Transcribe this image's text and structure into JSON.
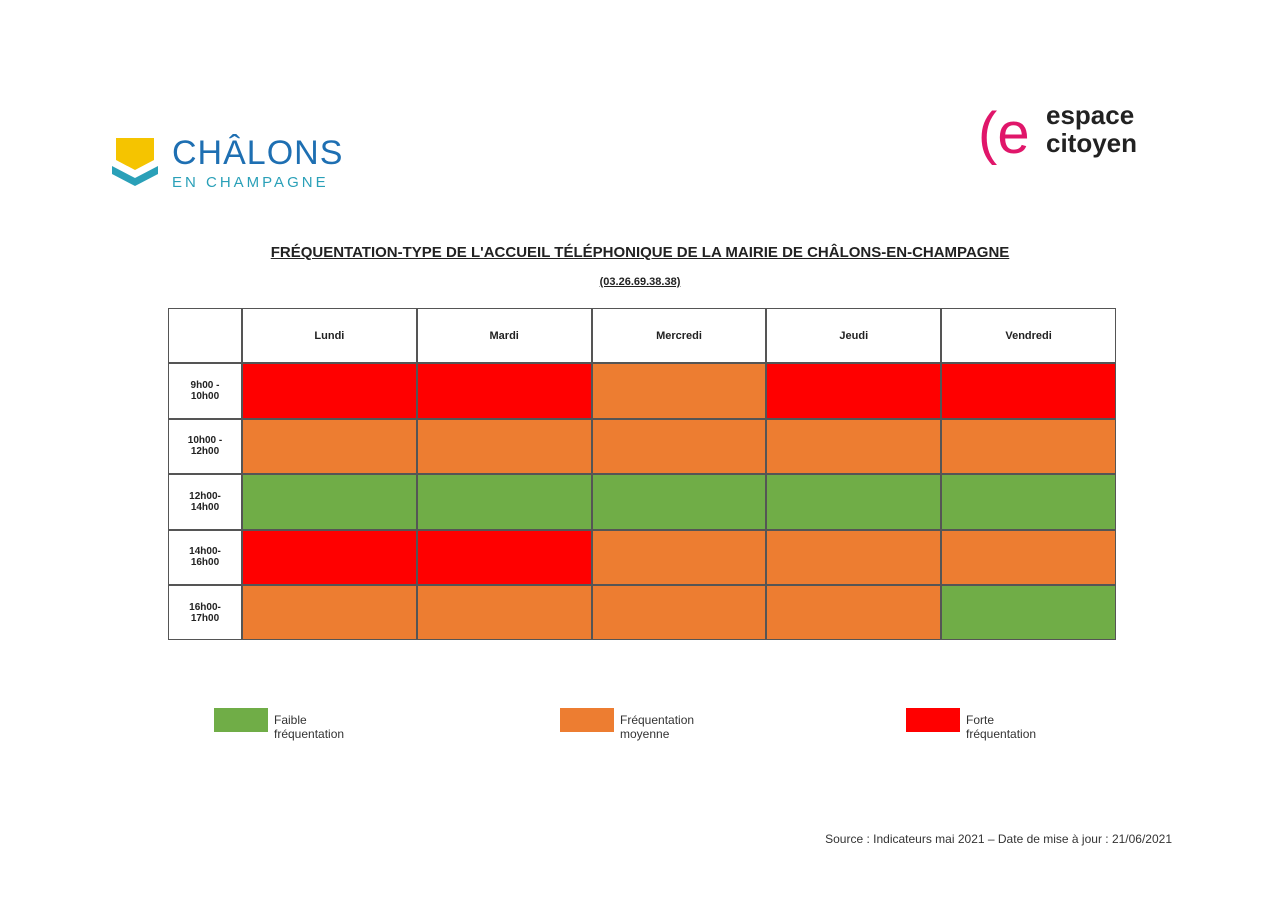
{
  "header": {
    "left_logo": {
      "name": "CHÂLONS",
      "sub": "EN CHAMPAGNE"
    },
    "right_logo": {
      "line1": "espace",
      "line2": "citoyen"
    }
  },
  "title": "FRÉQUENTATION-TYPE DE L'ACCUEIL TÉLÉPHONIQUE DE LA MAIRIE DE CHÂLONS-EN-CHAMPAGNE",
  "subtitle": "(03.26.69.38.38)",
  "table": {
    "columns": [
      "Lundi",
      "Mardi",
      "Mercredi",
      "Jeudi",
      "Vendredi"
    ],
    "rows": [
      {
        "label": "9h00 - 10h00",
        "cells": [
          "#ff0000",
          "#ff0000",
          "#ed7d31",
          "#ff0000",
          "#ff0000"
        ]
      },
      {
        "label": "10h00 - 12h00",
        "cells": [
          "#ed7d31",
          "#ed7d31",
          "#ed7d31",
          "#ed7d31",
          "#ed7d31"
        ]
      },
      {
        "label": "12h00-14h00",
        "cells": [
          "#70ad47",
          "#70ad47",
          "#70ad47",
          "#70ad47",
          "#70ad47"
        ]
      },
      {
        "label": "14h00-16h00",
        "cells": [
          "#ff0000",
          "#ff0000",
          "#ed7d31",
          "#ed7d31",
          "#ed7d31"
        ]
      },
      {
        "label": "16h00-17h00",
        "cells": [
          "#ed7d31",
          "#ed7d31",
          "#ed7d31",
          "#ed7d31",
          "#70ad47"
        ]
      }
    ]
  },
  "legend": [
    {
      "label": "Faible fréquentation",
      "color": "#70ad47"
    },
    {
      "label": "Fréquentation moyenne",
      "color": "#ed7d31"
    },
    {
      "label": "Forte fréquentation",
      "color": "#ff0000"
    }
  ],
  "source": "Source : Indicateurs mai 2021 – Date de mise à jour : 21/06/2021"
}
